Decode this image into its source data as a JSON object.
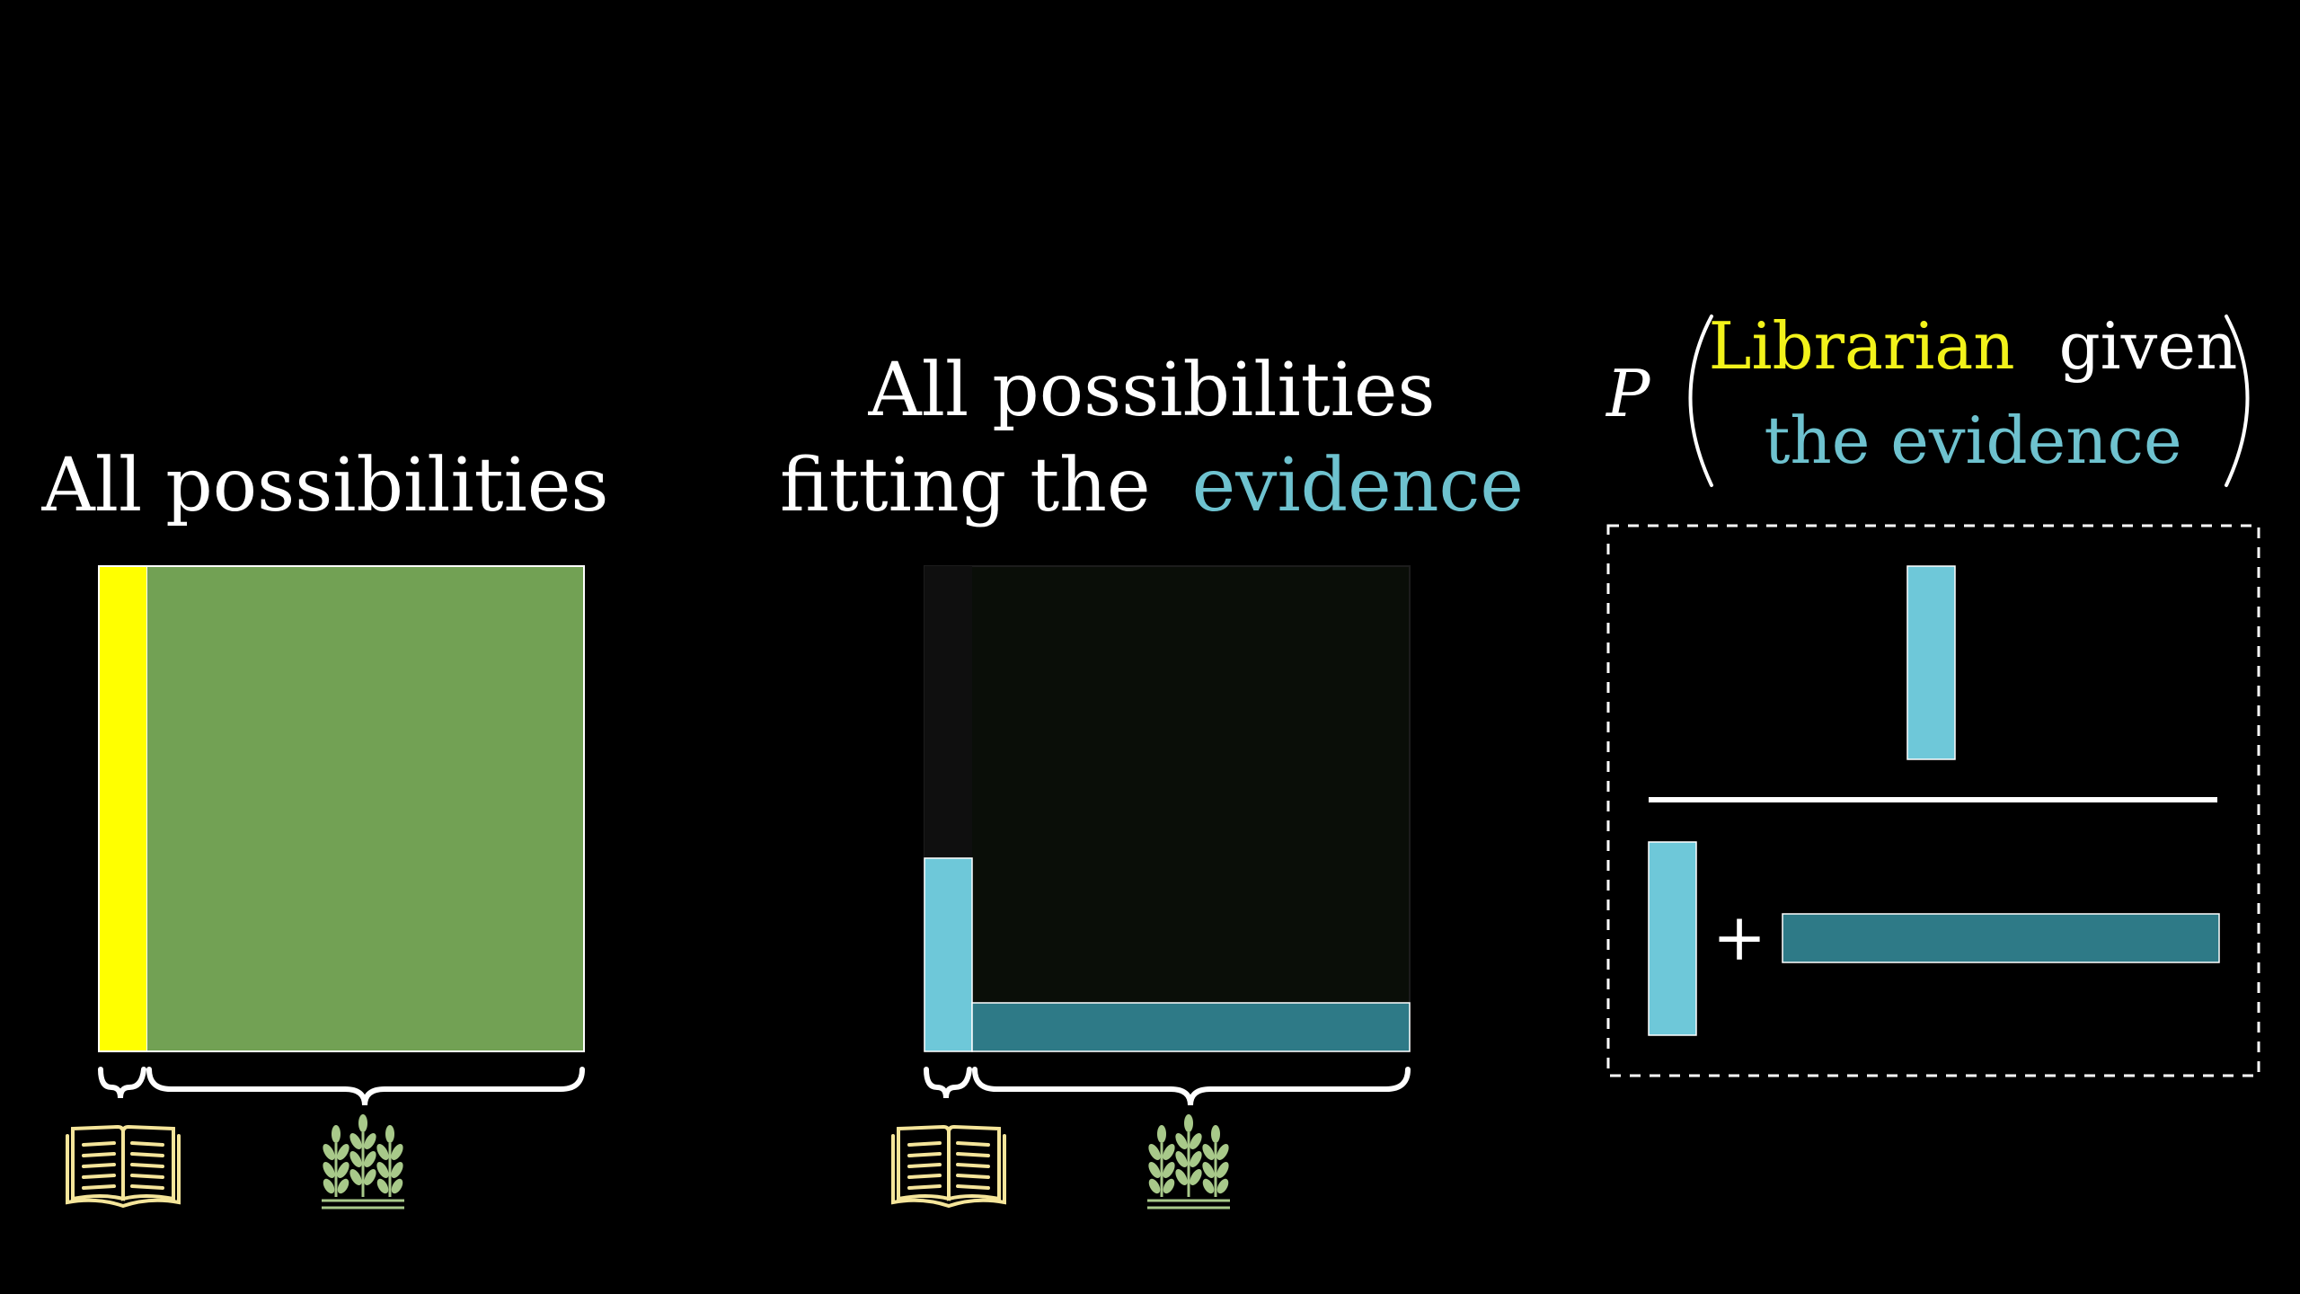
{
  "left_panel": {
    "title": "All possibilities"
  },
  "middle_panel": {
    "title_line1": "All possibilities",
    "title_prefix": "fitting the",
    "title_evidence": "evidence"
  },
  "formula": {
    "p_symbol": "P",
    "librarian": "Librarian",
    "given": "given",
    "the_evidence": "the evidence",
    "plus": "+"
  },
  "icons": {
    "librarian": "open-book-icon",
    "farmer": "wheat-icon"
  },
  "colors": {
    "background": "#000000",
    "librarian_yellow": "#ffff00",
    "farmer_green": "#72a154",
    "evidence_light_blue": "#6ec8d9",
    "evidence_dark_teal": "#2e7a87",
    "text": "#ffffff",
    "evidence_text": "#6ec2cf",
    "librarian_text": "#f2f21a",
    "book_icon": "#f5e59a",
    "wheat_icon": "#a8c98a"
  }
}
